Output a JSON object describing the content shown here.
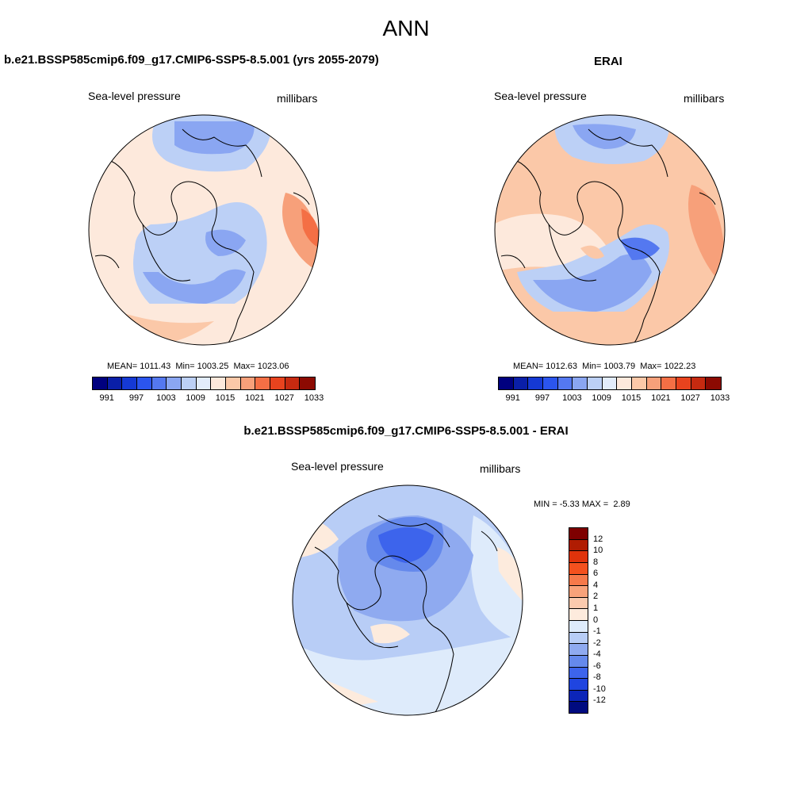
{
  "title": "ANN",
  "panel_left": {
    "title": "b.e21.BSSP585cmip6.f09_g17.CMIP6-SSP5-8.5.001 (yrs 2055-2079)",
    "variable": "Sea-level pressure",
    "units": "millibars",
    "stats": {
      "mean_label": "MEAN=",
      "mean": "1011.43",
      "min_label": "Min=",
      "min": "1003.25",
      "max_label": "Max=",
      "max": "1023.06"
    }
  },
  "panel_right": {
    "title": "ERAI",
    "variable": "Sea-level pressure",
    "units": "millibars",
    "stats": {
      "mean_label": "MEAN=",
      "mean": "1012.63",
      "min_label": "Min=",
      "min": "1003.79",
      "max_label": "Max=",
      "max": "1022.23"
    }
  },
  "panel_diff": {
    "title": "b.e21.BSSP585cmip6.f09_g17.CMIP6-SSP5-8.5.001 - ERAI",
    "variable": "Sea-level pressure",
    "units": "millibars",
    "stats": {
      "min_label": "MIN =",
      "min": "-5.33",
      "max_label": "MAX =",
      "max": "2.89"
    }
  },
  "abs_colorbar": {
    "colors": [
      "#00007f",
      "#0a1fa8",
      "#1539d4",
      "#2b55ee",
      "#5478f0",
      "#8aa6f2",
      "#bcd0f6",
      "#e2ecfb",
      "#fde9dc",
      "#fbc8a8",
      "#f7a07a",
      "#f46f45",
      "#e8431e",
      "#c62a10",
      "#8c0a02"
    ],
    "tick_labels": [
      "991",
      "997",
      "1003",
      "1009",
      "1015",
      "1021",
      "1027",
      "1033"
    ]
  },
  "diff_colorbar": {
    "colors": [
      "#7e0000",
      "#b01c02",
      "#e0330b",
      "#f4511e",
      "#f6794a",
      "#f8a27a",
      "#fbcaae",
      "#fdebdd",
      "#deebfb",
      "#b8cdf6",
      "#8faaf0",
      "#6589ec",
      "#3d64ec",
      "#1f45e0",
      "#0c25b8",
      "#000b80"
    ],
    "labels": [
      "12",
      "10",
      "8",
      "6",
      "4",
      "2",
      "1",
      "0",
      "-1",
      "-2",
      "-4",
      "-6",
      "-8",
      "-10",
      "-12"
    ]
  }
}
